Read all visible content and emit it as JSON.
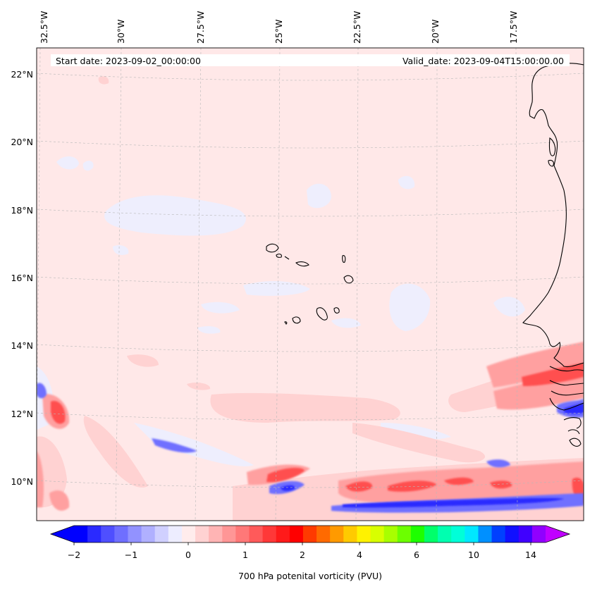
{
  "map": {
    "start_date": "Start date: 2023-09-02_00:00:00",
    "valid_date": "Valid_date: 2023-09-04T15:00:00.00",
    "lon_labels": [
      "32.5°W",
      "30°W",
      "27.5°W",
      "25°W",
      "22.5°W",
      "20°W",
      "17.5°W"
    ],
    "lat_labels": [
      "22°N",
      "20°N",
      "18°N",
      "16°N",
      "14°N",
      "12°N",
      "10°N"
    ],
    "background_color": "#ffe8e8",
    "coastline_color": "#000000"
  },
  "colorbar": {
    "label": "700 hPa potenital vorticity (PVU)",
    "tick_labels": [
      "−2",
      "−1",
      "0",
      "1",
      "2",
      "4",
      "6",
      "10",
      "14"
    ],
    "colors": [
      "#0000ff",
      "#2a2aff",
      "#4f4fff",
      "#6f6fff",
      "#9292ff",
      "#b0b0ff",
      "#d0d0ff",
      "#ededff",
      "#ffecec",
      "#ffd2d2",
      "#ffb4b4",
      "#ff9696",
      "#ff7878",
      "#ff5a5a",
      "#ff3838",
      "#ff1a1a",
      "#ff0000",
      "#ff3a00",
      "#ff6a00",
      "#ff9a00",
      "#ffca00",
      "#fff200",
      "#d8ff00",
      "#a8ff00",
      "#6cff00",
      "#1eff00",
      "#00ff6a",
      "#00ffb0",
      "#00ffd8",
      "#00e8ff",
      "#0090ff",
      "#0040ff",
      "#1010ff",
      "#4000ff",
      "#9000ff"
    ],
    "under_color": "#0000ff",
    "over_color": "#c000ff"
  }
}
